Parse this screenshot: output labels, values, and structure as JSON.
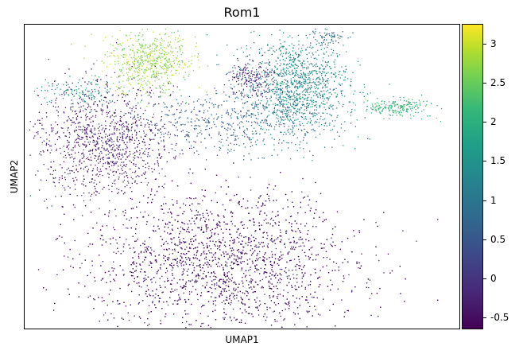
{
  "chart_data": {
    "type": "scatter",
    "title": "Rom1",
    "xlabel": "UMAP1",
    "ylabel": "UMAP2",
    "x_ticks_shown": false,
    "y_ticks_shown": false,
    "grid": false,
    "colormap": "viridis",
    "colorbar": {
      "range": [
        -0.65,
        3.25
      ],
      "ticks": [
        -0.5,
        0,
        0.5,
        1,
        1.5,
        2,
        2.5,
        3
      ],
      "tick_labels": [
        "-0.5",
        "0",
        "0.5",
        "1",
        "1.5",
        "2",
        "2.5",
        "3"
      ],
      "placement": "right"
    },
    "clusters": [
      {
        "center": [
          0.28,
          0.88
        ],
        "spread": [
          0.05,
          0.05
        ],
        "value": 2.6,
        "weight": 600
      },
      {
        "center": [
          0.62,
          0.8
        ],
        "spread": [
          0.06,
          0.08
        ],
        "value": 1.2,
        "weight": 1200
      },
      {
        "center": [
          0.52,
          0.82
        ],
        "spread": [
          0.03,
          0.03
        ],
        "value": -0.2,
        "weight": 200
      },
      {
        "center": [
          0.7,
          0.97
        ],
        "spread": [
          0.02,
          0.02
        ],
        "value": 0.7,
        "weight": 80
      },
      {
        "center": [
          0.85,
          0.73
        ],
        "spread": [
          0.04,
          0.015
        ],
        "value": 1.9,
        "weight": 200
      },
      {
        "center": [
          0.45,
          0.68
        ],
        "spread": [
          0.12,
          0.05
        ],
        "value": 0.5,
        "weight": 500
      },
      {
        "center": [
          0.18,
          0.62
        ],
        "spread": [
          0.08,
          0.09
        ],
        "value": -0.4,
        "weight": 1100
      },
      {
        "center": [
          0.45,
          0.22
        ],
        "spread": [
          0.15,
          0.12
        ],
        "value": -0.45,
        "weight": 3200
      },
      {
        "center": [
          0.12,
          0.78
        ],
        "spread": [
          0.05,
          0.02
        ],
        "value": 1.4,
        "weight": 120
      }
    ]
  }
}
